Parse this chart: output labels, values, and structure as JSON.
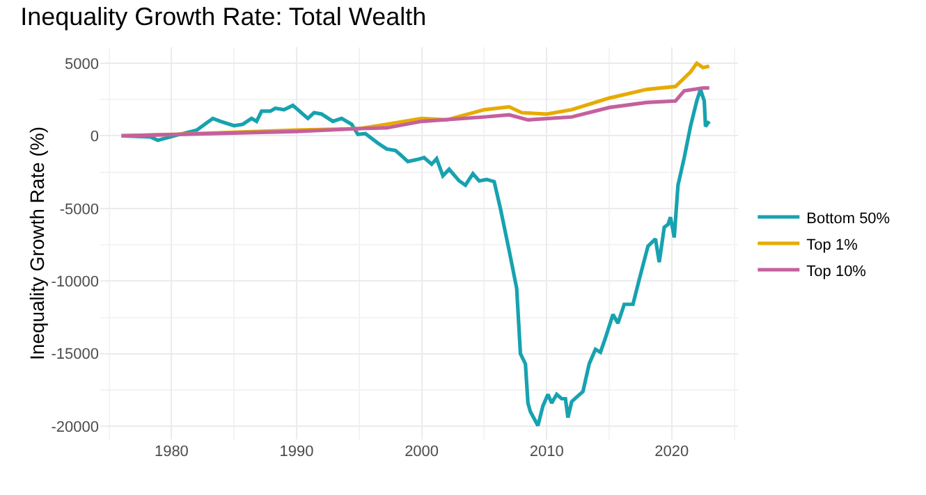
{
  "chart_data": {
    "type": "line",
    "title": "Inequality Growth Rate: Total Wealth",
    "ylabel": "Inequality Growth Rate (%)",
    "xlim": [
      1974.3,
      2025.3
    ],
    "ylim": [
      -20900,
      6100
    ],
    "xticks": [
      1980,
      1990,
      2000,
      2010,
      2020
    ],
    "yticks": [
      -20000,
      -15000,
      -10000,
      -5000,
      0,
      5000
    ],
    "grid": true,
    "legend": "right",
    "line_style": "solid",
    "marker": "none",
    "series": [
      {
        "name": "Bottom 50%",
        "color": "#17a2b0",
        "x": [
          1976.0,
          1978.3,
          1978.9,
          1980.2,
          1982.0,
          1983.3,
          1983.9,
          1985.0,
          1985.7,
          1986.4,
          1986.8,
          1987.2,
          1987.9,
          1988.3,
          1989.0,
          1989.7,
          1990.1,
          1990.9,
          1991.4,
          1992.0,
          1992.9,
          1993.6,
          1994.4,
          1994.9,
          1995.5,
          1996.5,
          1997.2,
          1997.9,
          1998.3,
          1998.9,
          1999.8,
          2000.2,
          2000.8,
          2001.2,
          2001.7,
          2002.2,
          2003.0,
          2003.5,
          2004.1,
          2004.6,
          2005.2,
          2005.8,
          2006.3,
          2007.0,
          2007.6,
          2007.9,
          2008.3,
          2008.5,
          2008.7,
          2009.3,
          2009.7,
          2010.1,
          2010.4,
          2010.8,
          2011.2,
          2011.5,
          2011.7,
          2012.0,
          2012.9,
          2013.4,
          2013.9,
          2014.3,
          2014.7,
          2015.3,
          2015.7,
          2016.2,
          2016.9,
          2017.4,
          2018.1,
          2018.7,
          2019.0,
          2019.4,
          2019.7,
          2019.9,
          2020.2,
          2020.5,
          2021.0,
          2021.5,
          2022.0,
          2022.3,
          2022.6,
          2022.7,
          2023.0
        ],
        "values": [
          0,
          -70,
          -300,
          0,
          390,
          1200,
          1000,
          700,
          800,
          1200,
          1000,
          1700,
          1700,
          1900,
          1800,
          2100,
          1800,
          1200,
          1600,
          1500,
          1000,
          1200,
          800,
          100,
          150,
          -500,
          -900,
          -1000,
          -1300,
          -1770,
          -1600,
          -1500,
          -1950,
          -1570,
          -2750,
          -2300,
          -3100,
          -3400,
          -2600,
          -3100,
          -3000,
          -3150,
          -5000,
          -7900,
          -10500,
          -15000,
          -15700,
          -18400,
          -19000,
          -19950,
          -18600,
          -17800,
          -18400,
          -17800,
          -18100,
          -18100,
          -19400,
          -18300,
          -17600,
          -15700,
          -14700,
          -14900,
          -13900,
          -12300,
          -12900,
          -11600,
          -11600,
          -9900,
          -7600,
          -7100,
          -8700,
          -6300,
          -6100,
          -5600,
          -7000,
          -3400,
          -1500,
          650,
          2400,
          3200,
          2400,
          650,
          1000
        ]
      },
      {
        "name": "Top 1%",
        "color": "#e6ab02",
        "x": [
          1976.0,
          1980.0,
          1990.0,
          1995.0,
          1997.2,
          2000.0,
          2002.0,
          2005.0,
          2007.0,
          2008.0,
          2010.0,
          2012.0,
          2015.0,
          2018.0,
          2020.3,
          2021.5,
          2022.0,
          2022.5,
          2023.0
        ],
        "values": [
          0,
          100,
          400,
          500,
          800,
          1200,
          1100,
          1800,
          2000,
          1600,
          1500,
          1800,
          2600,
          3200,
          3400,
          4400,
          5000,
          4700,
          4800
        ]
      },
      {
        "name": "Top 10%",
        "color": "#c4609e",
        "x": [
          1976.0,
          1990.0,
          1995.0,
          1997.2,
          2000.0,
          2005.0,
          2007.0,
          2008.5,
          2012.0,
          2015.0,
          2018.0,
          2020.3,
          2021.0,
          2022.5,
          2023.0
        ],
        "values": [
          0,
          300,
          500,
          550,
          1000,
          1300,
          1450,
          1100,
          1300,
          1950,
          2300,
          2400,
          3100,
          3300,
          3300
        ]
      }
    ]
  }
}
